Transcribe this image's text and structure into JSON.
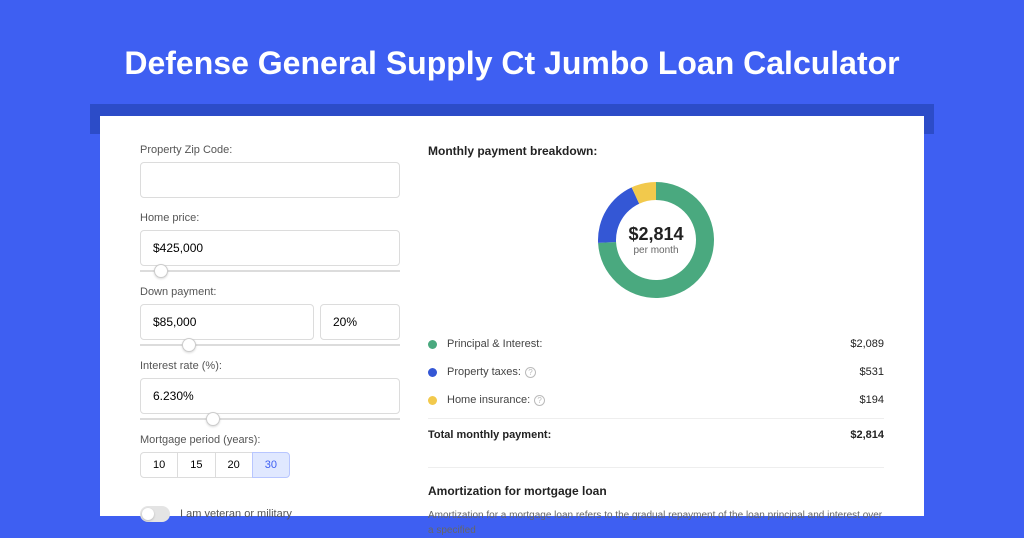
{
  "colors": {
    "page_bg": "#3e5ff2",
    "shadow_bar": "#2c4cc8",
    "card_bg": "#ffffff",
    "principal": "#4aa97f",
    "taxes": "#3457d5",
    "insurance": "#f2c94c",
    "seg_active_bg": "#e0e8ff",
    "seg_active_text": "#3e5ff2"
  },
  "title": "Defense General Supply Ct Jumbo Loan Calculator",
  "form": {
    "zip": {
      "label": "Property Zip Code:",
      "value": ""
    },
    "home_price": {
      "label": "Home price:",
      "value": "$425,000",
      "slider_pct": 8
    },
    "down_payment": {
      "label": "Down payment:",
      "amount": "$85,000",
      "pct": "20%",
      "slider_pct": 19
    },
    "interest_rate": {
      "label": "Interest rate (%):",
      "value": "6.230%",
      "slider_pct": 28
    },
    "mortgage_period": {
      "label": "Mortgage period (years):",
      "options": [
        "10",
        "15",
        "20",
        "30"
      ],
      "selected": "30"
    },
    "veteran": {
      "label": "I am veteran or military",
      "on": false
    }
  },
  "breakdown": {
    "title": "Monthly payment breakdown:",
    "donut": {
      "amount": "$2,814",
      "sub": "per month",
      "slices": [
        {
          "key": "principal",
          "pct": 74.2,
          "color": "#4aa97f"
        },
        {
          "key": "taxes",
          "pct": 18.9,
          "color": "#3457d5"
        },
        {
          "key": "insurance",
          "pct": 6.9,
          "color": "#f2c94c"
        }
      ]
    },
    "items": [
      {
        "label": "Principal & Interest:",
        "amount": "$2,089",
        "color": "#4aa97f",
        "info": false
      },
      {
        "label": "Property taxes:",
        "amount": "$531",
        "color": "#3457d5",
        "info": true
      },
      {
        "label": "Home insurance:",
        "amount": "$194",
        "color": "#f2c94c",
        "info": true
      }
    ],
    "total": {
      "label": "Total monthly payment:",
      "amount": "$2,814"
    }
  },
  "amortization": {
    "title": "Amortization for mortgage loan",
    "body": "Amortization for a mortgage loan refers to the gradual repayment of the loan principal and interest over a specified"
  }
}
